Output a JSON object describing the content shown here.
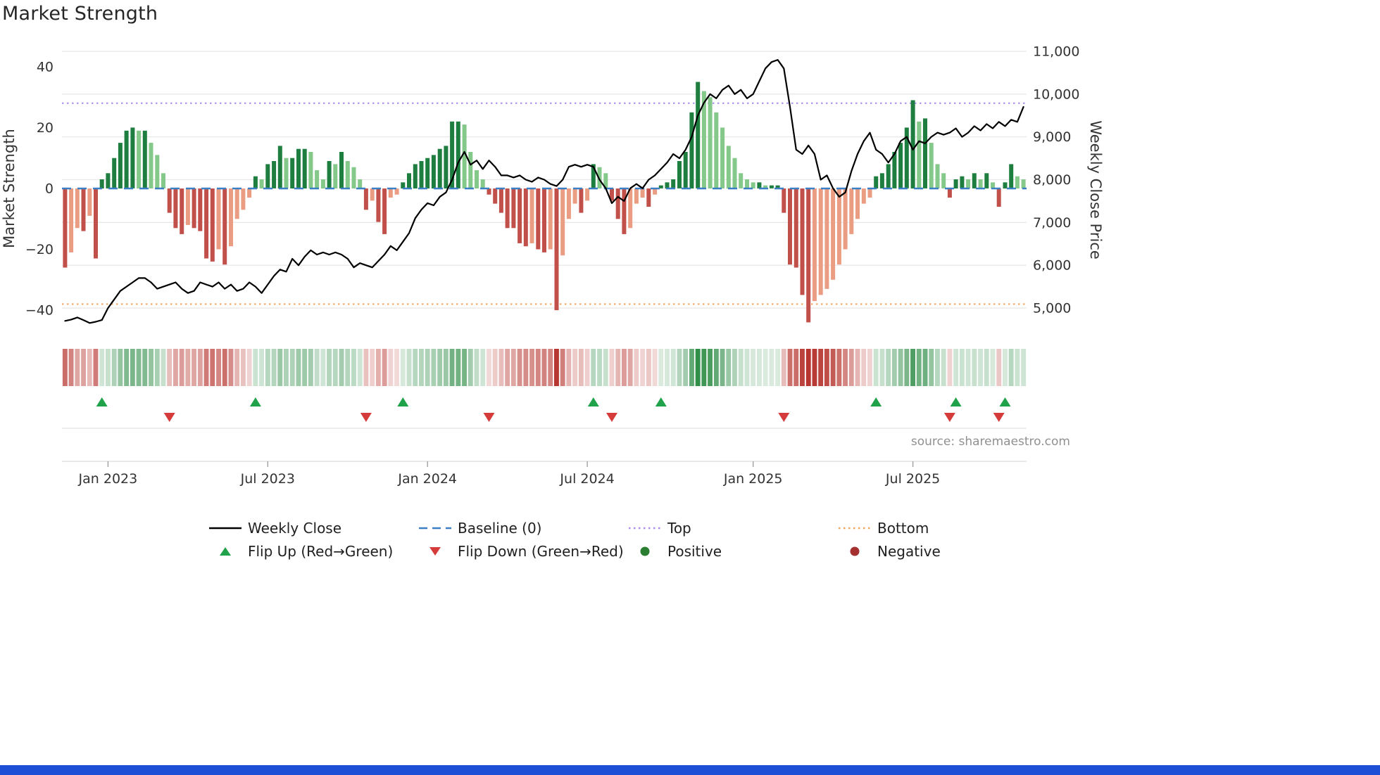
{
  "title": "Market Strength",
  "source_text": "source: sharemaestro.com",
  "left_axis": {
    "label": "Market Strength",
    "min": -49,
    "max": 47.6,
    "ticks": [
      {
        "v": 40,
        "label": "40"
      },
      {
        "v": 20,
        "label": "20"
      },
      {
        "v": 0,
        "label": "0"
      },
      {
        "v": -20,
        "label": "−20"
      },
      {
        "v": -40,
        "label": "−40"
      }
    ]
  },
  "right_axis": {
    "label": "Weekly Close Price",
    "min": 4310,
    "max": 11180,
    "ticks": [
      {
        "v": 11000,
        "label": "11,000"
      },
      {
        "v": 10000,
        "label": "10,000"
      },
      {
        "v": 9000,
        "label": "9,000"
      },
      {
        "v": 8000,
        "label": "8,000"
      },
      {
        "v": 7000,
        "label": "7,000"
      },
      {
        "v": 6000,
        "label": "6,000"
      },
      {
        "v": 5000,
        "label": "5,000"
      }
    ]
  },
  "x_axis": {
    "ticks": [
      {
        "week": 7,
        "label": "Jan 2023"
      },
      {
        "week": 33,
        "label": "Jul 2023"
      },
      {
        "week": 59,
        "label": "Jan 2024"
      },
      {
        "week": 85,
        "label": "Jul 2024"
      },
      {
        "week": 112,
        "label": "Jan 2025"
      },
      {
        "week": 138,
        "label": "Jul 2025"
      }
    ]
  },
  "legend": {
    "items": [
      {
        "label": "Weekly Close",
        "icon": "weekly-close-line-icon"
      },
      {
        "label": "Baseline (0)",
        "icon": "baseline-line-icon"
      },
      {
        "label": "Top",
        "icon": "top-line-icon"
      },
      {
        "label": "Bottom",
        "icon": "bottom-line-icon"
      },
      {
        "label": "Flip Up (Red→Green)",
        "icon": "flip-up-triangle-icon"
      },
      {
        "label": "Flip Down (Green→Red)",
        "icon": "flip-down-triangle-icon"
      },
      {
        "label": "Positive",
        "icon": "positive-dot-icon"
      },
      {
        "label": "Negative",
        "icon": "negative-dot-icon"
      }
    ]
  },
  "colors": {
    "bar_positive_dark": "#1e7e3f",
    "bar_positive_light": "#84c88a",
    "bar_negative_dark": "#c1504b",
    "bar_negative_light": "#ea9d82",
    "heat_positive_rgb": "34,134,60",
    "heat_negative_rgb": "183,54,48",
    "weekly_close_line": "#000000",
    "baseline": "#3b7fc4",
    "top_line": "#ab8cec",
    "bottom_line": "#f3a55c",
    "flip_up": "#1fa24a",
    "flip_down": "#d63b3b",
    "positive_dot": "#2a7e31",
    "negative_dot": "#a63030",
    "grid": "#e8e8e8",
    "axis_text": "#333333",
    "source_text_color": "#909090",
    "footer_bar": "#1d4fd6"
  },
  "chart_data": {
    "type": "combo-bar-line-heatmap",
    "x_unit": "week",
    "baseline": 0,
    "top_threshold": 28,
    "bottom_threshold": -38,
    "series": [
      {
        "name": "Market Strength",
        "type": "bar",
        "axis": "left",
        "values": [
          -26,
          -21,
          -13,
          -14,
          -9,
          -23,
          3,
          5,
          10,
          15,
          19,
          20,
          19,
          19,
          15,
          11,
          5,
          -8,
          -13,
          -15,
          -12,
          -13,
          -14,
          -23,
          -24,
          -20,
          -25,
          -19,
          -10,
          -7,
          -3,
          4,
          3,
          8,
          9,
          14,
          10,
          10,
          13,
          13,
          12,
          6,
          3,
          9,
          8,
          12,
          9,
          7,
          3,
          -7,
          -4,
          -11,
          -15,
          -3,
          -2,
          2,
          5,
          8,
          9,
          10,
          11,
          13,
          14,
          22,
          22,
          21,
          12,
          6,
          3,
          -2,
          -5,
          -8,
          -13,
          -13,
          -18,
          -19,
          -18,
          -20,
          -21,
          -20,
          -40,
          -22,
          -10,
          -5,
          -8,
          -4,
          8,
          7,
          5,
          -4,
          -10,
          -15,
          -13,
          -5,
          -3,
          -6,
          -2,
          1,
          2,
          3,
          9,
          12,
          25,
          35,
          32,
          30,
          25,
          20,
          14,
          10,
          5,
          3,
          2,
          2,
          1,
          1,
          1,
          -8,
          -25,
          -26,
          -35,
          -44,
          -37,
          -35,
          -33,
          -30,
          -25,
          -20,
          -15,
          -10,
          -5,
          -3,
          4,
          5,
          8,
          12,
          15,
          20,
          29,
          22,
          23,
          15,
          8,
          5,
          -3,
          3,
          4,
          3,
          5,
          3,
          5,
          2,
          -6,
          2,
          8,
          4,
          3
        ]
      },
      {
        "name": "Weekly Close",
        "type": "line",
        "axis": "right",
        "values": [
          4700,
          4730,
          4780,
          4720,
          4650,
          4680,
          4720,
          5000,
          5200,
          5400,
          5500,
          5600,
          5700,
          5700,
          5600,
          5450,
          5500,
          5550,
          5600,
          5450,
          5350,
          5400,
          5600,
          5550,
          5500,
          5600,
          5450,
          5550,
          5400,
          5450,
          5600,
          5500,
          5350,
          5550,
          5750,
          5900,
          5850,
          6150,
          6000,
          6200,
          6350,
          6250,
          6300,
          6250,
          6300,
          6250,
          6150,
          5950,
          6050,
          6000,
          5950,
          6100,
          6250,
          6450,
          6350,
          6550,
          6750,
          7100,
          7300,
          7450,
          7400,
          7600,
          7700,
          8000,
          8400,
          8650,
          8350,
          8450,
          8250,
          8450,
          8300,
          8100,
          8100,
          8050,
          8100,
          8000,
          7950,
          8050,
          8000,
          7900,
          7850,
          8000,
          8300,
          8350,
          8300,
          8350,
          8300,
          8000,
          7800,
          7450,
          7600,
          7500,
          7800,
          7900,
          7800,
          8000,
          8100,
          8250,
          8400,
          8600,
          8500,
          8700,
          9000,
          9500,
          9800,
          10000,
          9900,
          10100,
          10200,
          10000,
          10100,
          9900,
          10000,
          10300,
          10600,
          10750,
          10800,
          10600,
          9700,
          8700,
          8600,
          8800,
          8600,
          8000,
          8100,
          7800,
          7600,
          7700,
          8200,
          8600,
          8900,
          9100,
          8700,
          8600,
          8400,
          8600,
          8900,
          9000,
          8700,
          8900,
          8850,
          9000,
          9100,
          9050,
          9100,
          9200,
          9000,
          9100,
          9250,
          9150,
          9300,
          9200,
          9350,
          9250,
          9400,
          9350,
          9700
        ]
      }
    ],
    "flip_up_weeks": [
      6,
      31,
      55,
      86,
      97,
      132,
      145,
      153
    ],
    "flip_down_weeks": [
      17,
      49,
      69,
      89,
      117,
      144,
      152
    ]
  }
}
